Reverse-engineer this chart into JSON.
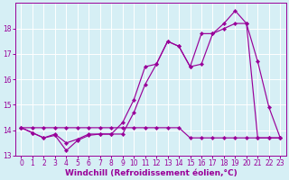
{
  "xlabel": "Windchill (Refroidissement éolien,°C)",
  "background_color": "#d6eff5",
  "line_color": "#990099",
  "grid_color": "#ffffff",
  "xlim": [
    -0.5,
    23.5
  ],
  "ylim": [
    13.0,
    19.0
  ],
  "xticks": [
    0,
    1,
    2,
    3,
    4,
    5,
    6,
    7,
    8,
    9,
    10,
    11,
    12,
    13,
    14,
    15,
    16,
    17,
    18,
    19,
    20,
    21,
    22,
    23
  ],
  "yticks": [
    13,
    14,
    15,
    16,
    17,
    18
  ],
  "series": [
    {
      "x": [
        0,
        1,
        2,
        3,
        4,
        5,
        6,
        7,
        8,
        9,
        10,
        11,
        12,
        13,
        14,
        15,
        16,
        17,
        18,
        19,
        20,
        21,
        22,
        23
      ],
      "y": [
        14.1,
        13.9,
        13.7,
        13.8,
        13.2,
        13.6,
        13.8,
        13.85,
        13.85,
        14.3,
        15.2,
        16.5,
        16.6,
        17.5,
        17.3,
        16.5,
        17.8,
        17.8,
        18.2,
        18.7,
        18.2,
        16.7,
        14.9,
        13.7
      ]
    },
    {
      "x": [
        0,
        1,
        2,
        3,
        4,
        5,
        6,
        7,
        8,
        9,
        10,
        11,
        12,
        13,
        14,
        15,
        16,
        17,
        18,
        19,
        20,
        21,
        22,
        23
      ],
      "y": [
        14.1,
        13.9,
        13.7,
        13.85,
        13.5,
        13.65,
        13.85,
        13.85,
        13.85,
        13.85,
        14.7,
        15.8,
        16.6,
        17.5,
        17.3,
        16.5,
        16.6,
        17.8,
        18.0,
        18.2,
        18.2,
        13.7,
        13.7,
        13.7
      ]
    },
    {
      "x": [
        0,
        1,
        2,
        3,
        4,
        5,
        6,
        7,
        8,
        9,
        10,
        11,
        12,
        13,
        14,
        15,
        16,
        17,
        18,
        19,
        20,
        21,
        22,
        23
      ],
      "y": [
        14.1,
        14.1,
        14.1,
        14.1,
        14.1,
        14.1,
        14.1,
        14.1,
        14.1,
        14.1,
        14.1,
        14.1,
        14.1,
        14.1,
        14.1,
        13.7,
        13.7,
        13.7,
        13.7,
        13.7,
        13.7,
        13.7,
        13.7,
        13.7
      ]
    }
  ],
  "tick_fontsize": 5.5,
  "xlabel_fontsize": 6.5,
  "markersize": 2.2,
  "linewidth": 0.85
}
